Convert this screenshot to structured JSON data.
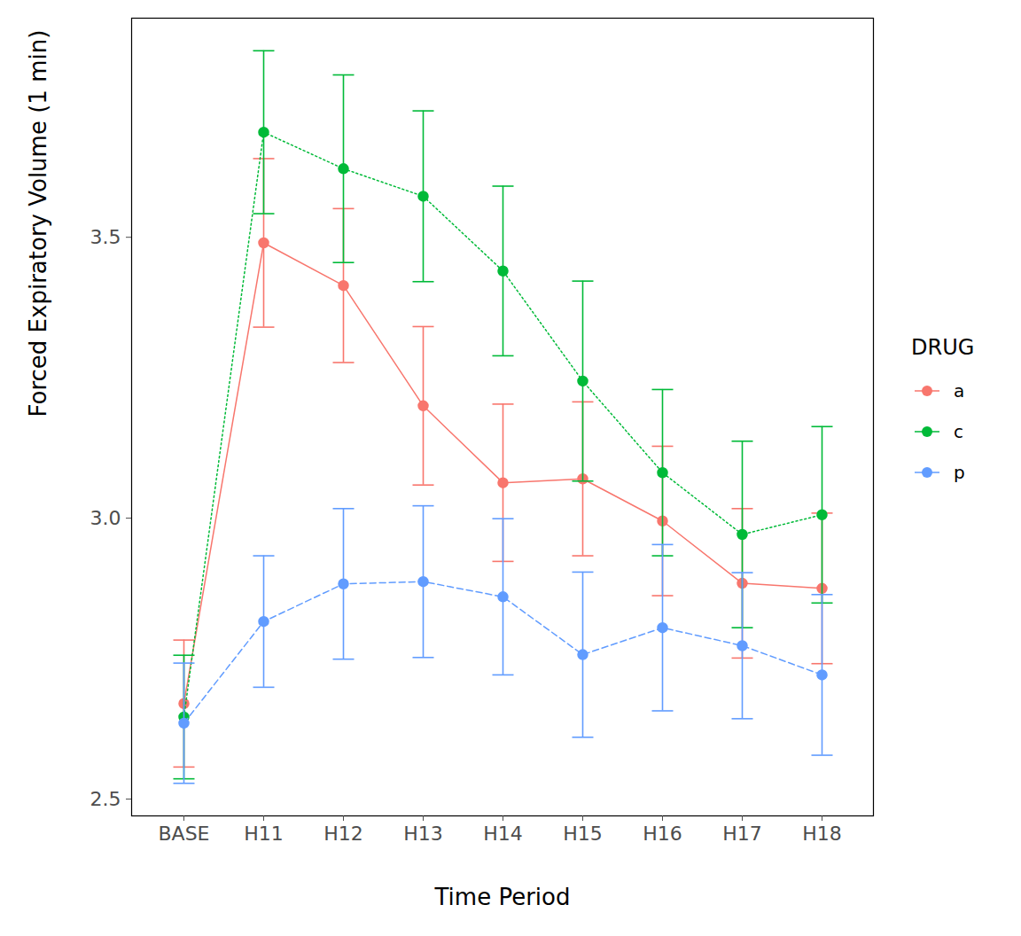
{
  "chart_data": {
    "type": "line",
    "x_label": "Time Period",
    "y_label": "Forced Expiratory Volume (1 min)",
    "legend_title": "DRUG",
    "legend": "right",
    "grid": false,
    "categories": [
      "BASE",
      "H11",
      "H12",
      "H13",
      "H14",
      "H15",
      "H16",
      "H17",
      "H18"
    ],
    "ylim": [
      2.47,
      3.89
    ],
    "yticks": [
      2.5,
      {
        "value": 3,
        "label": "3.0"
      },
      3.5
    ],
    "series": [
      {
        "name": "a",
        "color": "#F8766D",
        "line_style": "solid",
        "marker": "circle",
        "values": [
          2.67,
          3.49,
          3.414,
          3.2,
          3.063,
          3.07,
          2.995,
          2.884,
          2.875
        ],
        "error": [
          0.113,
          0.15,
          0.137,
          0.141,
          0.14,
          0.137,
          0.133,
          0.133,
          0.134
        ]
      },
      {
        "name": "c",
        "color": "#00BA38",
        "line_style": "dotted",
        "marker": "circle",
        "values": [
          2.646,
          3.687,
          3.622,
          3.573,
          3.44,
          3.244,
          3.081,
          2.971,
          3.006
        ],
        "error": [
          0.11,
          0.145,
          0.167,
          0.152,
          0.151,
          0.178,
          0.148,
          0.166,
          0.157
        ]
      },
      {
        "name": "p",
        "color": "#619CFF",
        "line_style": "dashed",
        "marker": "circle",
        "values": [
          2.635,
          2.816,
          2.883,
          2.887,
          2.86,
          2.757,
          2.805,
          2.773,
          2.721
        ],
        "error": [
          0.107,
          0.117,
          0.134,
          0.135,
          0.139,
          0.147,
          0.148,
          0.13,
          0.143
        ]
      }
    ]
  }
}
